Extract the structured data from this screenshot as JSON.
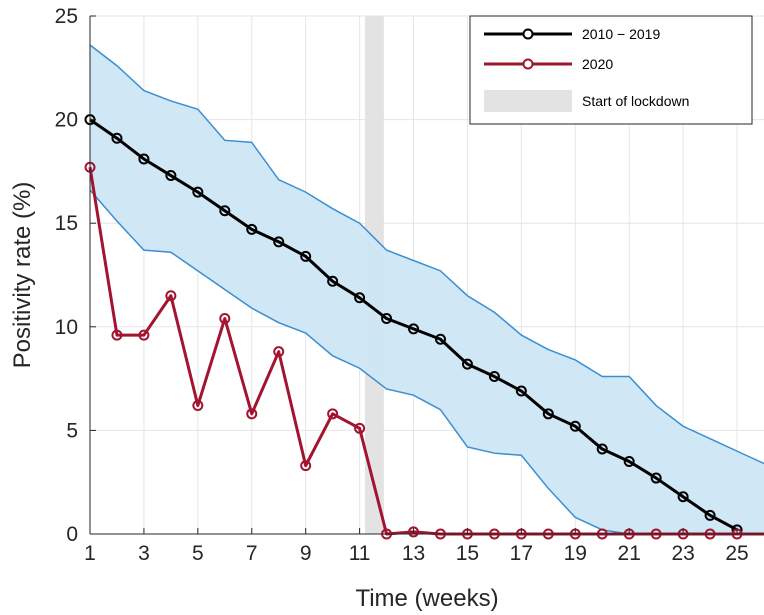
{
  "chart_data": {
    "type": "line",
    "xlabel": "Time (weeks)",
    "ylabel": "Positivity rate (%)",
    "xlim": [
      1,
      26
    ],
    "ylim": [
      0,
      25
    ],
    "x_ticks": [
      "1",
      "3",
      "5",
      "7",
      "9",
      "11",
      "13",
      "15",
      "17",
      "19",
      "21",
      "23",
      "25"
    ],
    "y_ticks": [
      "0",
      "5",
      "10",
      "15",
      "20",
      "25"
    ],
    "grid": true,
    "legend_position": "top-right",
    "x": [
      1,
      2,
      3,
      4,
      5,
      6,
      7,
      8,
      9,
      10,
      11,
      12,
      13,
      14,
      15,
      16,
      17,
      18,
      19,
      20,
      21,
      22,
      23,
      24,
      25
    ],
    "series": [
      {
        "name": "2010 − 2019",
        "color": "#000000",
        "values": [
          20.0,
          19.1,
          18.1,
          17.3,
          16.5,
          15.6,
          14.7,
          14.1,
          13.4,
          12.2,
          11.4,
          10.4,
          9.9,
          9.4,
          8.2,
          7.6,
          6.9,
          5.8,
          5.2,
          4.1,
          3.5,
          2.7,
          1.8,
          0.9,
          0.2
        ]
      },
      {
        "name": "2020",
        "color": "#a2142f",
        "values": [
          17.7,
          9.6,
          9.6,
          11.5,
          6.2,
          10.4,
          5.8,
          8.8,
          3.3,
          5.8,
          5.1,
          0.0,
          0.1,
          0.0,
          0.0,
          0.0,
          0.0,
          0.0,
          0.0,
          0.0,
          0.0,
          0.0,
          0.0,
          0.0,
          0.0
        ]
      }
    ],
    "band": {
      "x": [
        1,
        2,
        3,
        4,
        5,
        6,
        7,
        8,
        9,
        10,
        11,
        12,
        13,
        14,
        15,
        16,
        17,
        18,
        19,
        20,
        21,
        22,
        23,
        24,
        25,
        26
      ],
      "upper": [
        23.6,
        22.6,
        21.4,
        20.9,
        20.5,
        19.0,
        18.9,
        17.1,
        16.5,
        15.7,
        15.0,
        13.7,
        13.2,
        12.7,
        11.5,
        10.7,
        9.6,
        8.9,
        8.4,
        7.6,
        7.6,
        6.2,
        5.2,
        4.6,
        4.0,
        3.4
      ],
      "lower": [
        16.6,
        15.1,
        13.7,
        13.6,
        12.7,
        11.8,
        10.9,
        10.2,
        9.7,
        8.6,
        8.0,
        7.0,
        6.7,
        6.0,
        4.2,
        3.9,
        3.8,
        2.2,
        0.8,
        0.2,
        0.0,
        0.0,
        0.0,
        0.0,
        0.0,
        0.0
      ],
      "fill_color": "#cde6f4",
      "edge_color": "#3b8fd0"
    },
    "lockdown": {
      "name": "Start of lockdown",
      "x_start": 11.2,
      "x_end": 11.9,
      "color": "#e3e3e3"
    }
  }
}
